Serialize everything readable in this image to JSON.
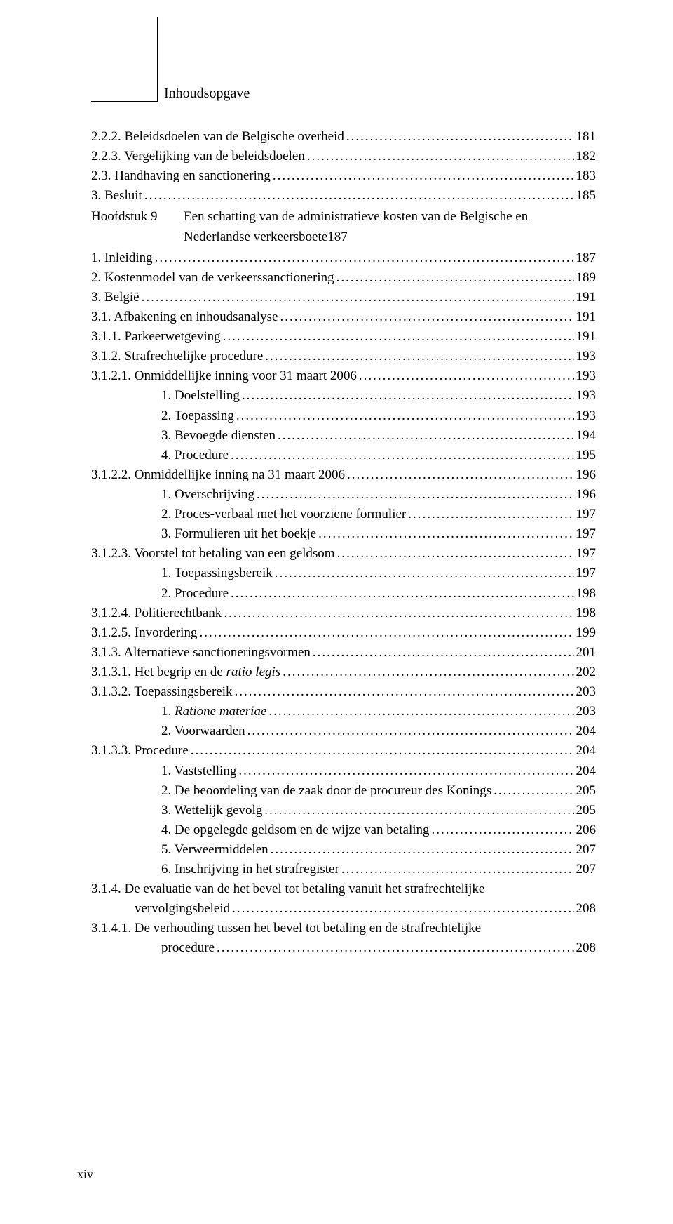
{
  "header": {
    "title": "Inhoudsopgave"
  },
  "footer": {
    "pageNumber": "xiv"
  },
  "toc": [
    {
      "indent": 0,
      "text": "2.2.2.  Beleidsdoelen van de Belgische overheid",
      "page": "181"
    },
    {
      "indent": 0,
      "text": "2.2.3.  Vergelijking van de beleidsdoelen",
      "page": "182"
    },
    {
      "indent": 0,
      "text": "2.3.  Handhaving en sanctionering",
      "page": "183"
    },
    {
      "indent": 0,
      "text": "3.  Besluit",
      "page": "185"
    },
    {
      "indent": 0,
      "type": "chapter",
      "chapLabel": "Hoofdstuk 9",
      "line1": "Een schatting van de administratieve kosten van de Belgische en",
      "line2": "Nederlandse verkeersboete",
      "page": "187"
    },
    {
      "indent": 0,
      "text": "1.  Inleiding",
      "page": "187"
    },
    {
      "indent": 0,
      "text": "2.  Kostenmodel van de verkeerssanctionering",
      "page": "189"
    },
    {
      "indent": 0,
      "text": "3.  België",
      "page": "191"
    },
    {
      "indent": 0,
      "text": "3.1.  Afbakening en inhoudsanalyse",
      "page": "191"
    },
    {
      "indent": 0,
      "text": "3.1.1.  Parkeerwetgeving",
      "page": "191"
    },
    {
      "indent": 0,
      "text": "3.1.2.  Strafrechtelijke procedure",
      "page": "193"
    },
    {
      "indent": 0,
      "text": "3.1.2.1.      Onmiddellijke inning voor 31 maart 2006",
      "page": "193"
    },
    {
      "indent": 2,
      "text": "1.    Doelstelling",
      "page": "193"
    },
    {
      "indent": 2,
      "text": "2.    Toepassing",
      "page": "193"
    },
    {
      "indent": 2,
      "text": "3.    Bevoegde diensten",
      "page": "194"
    },
    {
      "indent": 2,
      "text": "4.    Procedure",
      "page": "195"
    },
    {
      "indent": 0,
      "text": "3.1.2.2.      Onmiddellijke inning na 31 maart 2006",
      "page": "196"
    },
    {
      "indent": 2,
      "text": "1.    Overschrijving",
      "page": "196"
    },
    {
      "indent": 2,
      "text": "2.    Proces-verbaal met het voorziene formulier",
      "page": "197"
    },
    {
      "indent": 2,
      "text": "3.    Formulieren uit het boekje",
      "page": "197"
    },
    {
      "indent": 0,
      "text": "3.1.2.3.      Voorstel tot betaling van een geldsom",
      "page": "197"
    },
    {
      "indent": 2,
      "text": "1.    Toepassingsbereik",
      "page": "197"
    },
    {
      "indent": 2,
      "text": "2.    Procedure",
      "page": "198"
    },
    {
      "indent": 0,
      "text": "3.1.2.4.      Politierechtbank",
      "page": "198"
    },
    {
      "indent": 0,
      "text": "3.1.2.5.      Invordering",
      "page": "199"
    },
    {
      "indent": 0,
      "text": "3.1.3.  Alternatieve sanctioneringsvormen",
      "page": "201"
    },
    {
      "indent": 0,
      "text": "3.1.3.1.      Het begrip en de ",
      "italicTail": "ratio legis",
      "page": "202"
    },
    {
      "indent": 0,
      "text": "3.1.3.2.      Toepassingsbereik",
      "page": "203"
    },
    {
      "indent": 2,
      "text": "1.    ",
      "italicTail": "Ratione materiae",
      "page": "203"
    },
    {
      "indent": 2,
      "text": "2.    Voorwaarden",
      "page": "204"
    },
    {
      "indent": 0,
      "text": "3.1.3.3.      Procedure",
      "page": "204"
    },
    {
      "indent": 2,
      "text": "1.    Vaststelling",
      "page": "204"
    },
    {
      "indent": 2,
      "text": "2.    De beoordeling van de zaak door de procureur des Konings",
      "page": "205"
    },
    {
      "indent": 2,
      "text": "3.    Wettelijk gevolg",
      "page": "205"
    },
    {
      "indent": 2,
      "text": "4.    De opgelegde geldsom en de wijze van betaling",
      "page": "206"
    },
    {
      "indent": 2,
      "text": "5.    Verweermiddelen",
      "page": "207"
    },
    {
      "indent": 2,
      "text": "6.    Inschrijving in het strafregister",
      "page": "207"
    },
    {
      "indent": 0,
      "type": "wrap",
      "line1": "3.1.4.  De evaluatie van de het bevel tot betaling vanuit het strafrechtelijke",
      "line2": "vervolgingsbeleid",
      "wrapIndent": 1,
      "page": "208"
    },
    {
      "indent": 0,
      "type": "wrap",
      "line1": "3.1.4.1. De verhouding tussen het bevel tot betaling en de strafrechtelijke",
      "line2": "procedure",
      "wrapIndent": 2,
      "page": "208"
    }
  ]
}
